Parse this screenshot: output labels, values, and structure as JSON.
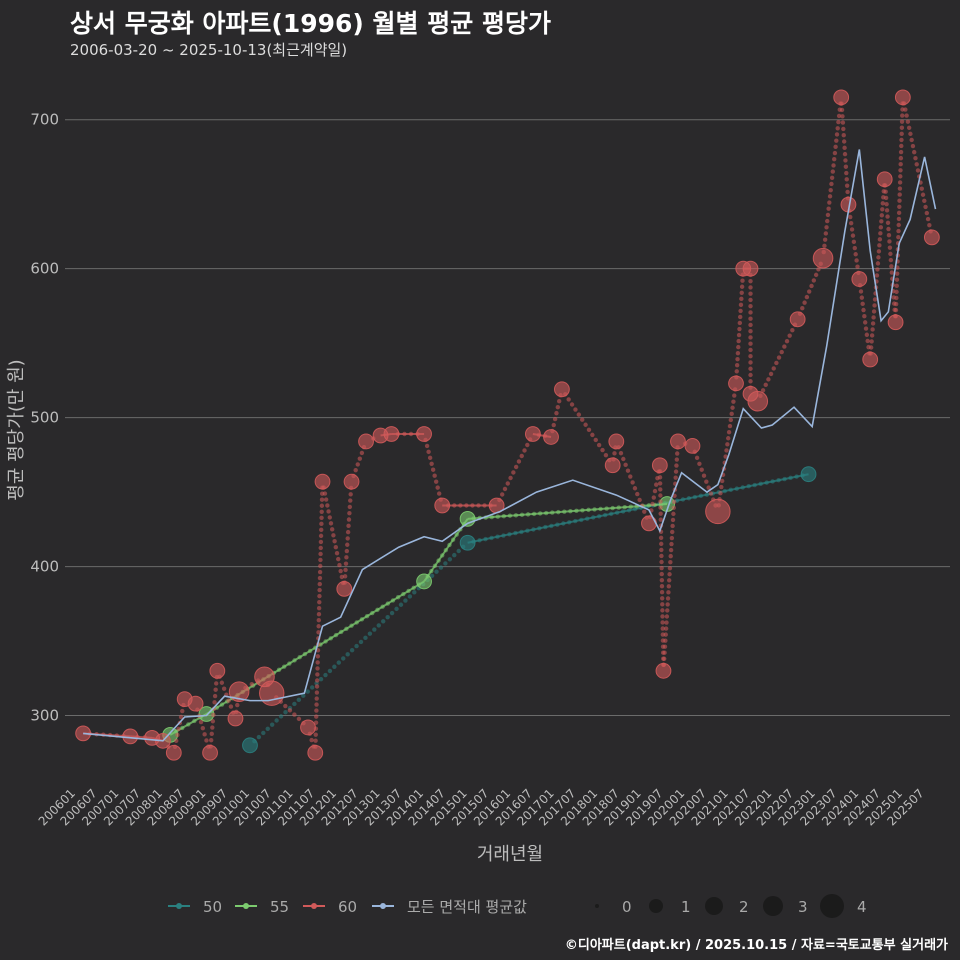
{
  "header": {
    "title": "상서 무궁화 아파트(1996) 월별 평균 평당가",
    "subtitle": "2006-03-20 ~ 2025-10-13(최근계약일)",
    "credit": "©디아파트(dapt.kr) / 2025.10.15 / 자료=국토교통부 실거래가"
  },
  "chart_data": {
    "type": "line",
    "title": "상서 무궁화 아파트(1996) 월별 평균 평당가",
    "xlabel": "거래년월",
    "ylabel": "평균 평당가(만 원)",
    "ylim": [
      250,
      730
    ],
    "yticks": [
      300,
      400,
      500,
      600,
      700
    ],
    "xlim": [
      "2005-10",
      "2026-02"
    ],
    "xtick_labels": [
      "200601",
      "200607",
      "200701",
      "200707",
      "200801",
      "200807",
      "200901",
      "200907",
      "201001",
      "201007",
      "201101",
      "201107",
      "201201",
      "201207",
      "201301",
      "201307",
      "201401",
      "201407",
      "201501",
      "201507",
      "201601",
      "201607",
      "201701",
      "201707",
      "201801",
      "201807",
      "201901",
      "201907",
      "202001",
      "202007",
      "202101",
      "202107",
      "202201",
      "202207",
      "202301",
      "202307",
      "202401",
      "202407",
      "202501",
      "202507"
    ],
    "colors": {
      "50": "#2a8080",
      "55": "#7ccb6f",
      "60": "#d15a5a",
      "avg": "#9ab6dc"
    },
    "series": [
      {
        "name": "50",
        "color": "#2a8080",
        "points": [
          {
            "x": "2010-01",
            "y": 280,
            "n": 1
          },
          {
            "x": "2015-01",
            "y": 416,
            "n": 1
          },
          {
            "x": "2022-11",
            "y": 462,
            "n": 1
          }
        ]
      },
      {
        "name": "55",
        "color": "#7ccb6f",
        "points": [
          {
            "x": "2008-03",
            "y": 287,
            "n": 1
          },
          {
            "x": "2009-01",
            "y": 301,
            "n": 1
          },
          {
            "x": "2014-01",
            "y": 390,
            "n": 1
          },
          {
            "x": "2015-01",
            "y": 432,
            "n": 1
          },
          {
            "x": "2019-08",
            "y": 442,
            "n": 1
          }
        ]
      },
      {
        "name": "60",
        "color": "#d15a5a",
        "points": [
          {
            "x": "2006-03",
            "y": 288,
            "n": 1
          },
          {
            "x": "2007-04",
            "y": 286,
            "n": 1
          },
          {
            "x": "2007-10",
            "y": 285,
            "n": 1
          },
          {
            "x": "2008-01",
            "y": 283,
            "n": 1
          },
          {
            "x": "2008-04",
            "y": 275,
            "n": 1
          },
          {
            "x": "2008-07",
            "y": 311,
            "n": 1
          },
          {
            "x": "2008-10",
            "y": 308,
            "n": 1
          },
          {
            "x": "2009-02",
            "y": 275,
            "n": 1
          },
          {
            "x": "2009-04",
            "y": 330,
            "n": 1
          },
          {
            "x": "2009-09",
            "y": 298,
            "n": 1
          },
          {
            "x": "2009-10",
            "y": 316,
            "n": 2
          },
          {
            "x": "2010-05",
            "y": 326,
            "n": 2
          },
          {
            "x": "2010-07",
            "y": 315,
            "n": 3
          },
          {
            "x": "2011-05",
            "y": 292,
            "n": 1
          },
          {
            "x": "2011-07",
            "y": 275,
            "n": 1
          },
          {
            "x": "2011-09",
            "y": 457,
            "n": 1
          },
          {
            "x": "2012-03",
            "y": 385,
            "n": 1
          },
          {
            "x": "2012-05",
            "y": 457,
            "n": 1
          },
          {
            "x": "2012-09",
            "y": 484,
            "n": 1
          },
          {
            "x": "2013-01",
            "y": 488,
            "n": 1
          },
          {
            "x": "2013-04",
            "y": 489,
            "n": 1
          },
          {
            "x": "2014-01",
            "y": 489,
            "n": 1
          },
          {
            "x": "2014-06",
            "y": 441,
            "n": 1
          },
          {
            "x": "2015-09",
            "y": 441,
            "n": 1
          },
          {
            "x": "2016-07",
            "y": 489,
            "n": 1
          },
          {
            "x": "2016-12",
            "y": 487,
            "n": 1
          },
          {
            "x": "2017-03",
            "y": 519,
            "n": 1
          },
          {
            "x": "2018-05",
            "y": 468,
            "n": 1
          },
          {
            "x": "2018-06",
            "y": 484,
            "n": 1
          },
          {
            "x": "2019-03",
            "y": 429,
            "n": 1
          },
          {
            "x": "2019-06",
            "y": 468,
            "n": 1
          },
          {
            "x": "2019-07",
            "y": 330,
            "n": 1
          },
          {
            "x": "2019-11",
            "y": 484,
            "n": 1
          },
          {
            "x": "2020-03",
            "y": 481,
            "n": 1
          },
          {
            "x": "2020-10",
            "y": 437,
            "n": 3
          },
          {
            "x": "2021-03",
            "y": 523,
            "n": 1
          },
          {
            "x": "2021-05",
            "y": 600,
            "n": 1
          },
          {
            "x": "2021-07",
            "y": 600,
            "n": 1
          },
          {
            "x": "2021-07",
            "y": 516,
            "n": 1
          },
          {
            "x": "2021-09",
            "y": 511,
            "n": 2
          },
          {
            "x": "2022-08",
            "y": 566,
            "n": 1
          },
          {
            "x": "2023-03",
            "y": 607,
            "n": 2
          },
          {
            "x": "2023-08",
            "y": 715,
            "n": 1
          },
          {
            "x": "2023-10",
            "y": 643,
            "n": 1
          },
          {
            "x": "2024-01",
            "y": 593,
            "n": 1
          },
          {
            "x": "2024-04",
            "y": 539,
            "n": 1
          },
          {
            "x": "2024-08",
            "y": 660,
            "n": 1
          },
          {
            "x": "2024-11",
            "y": 564,
            "n": 1
          },
          {
            "x": "2025-01",
            "y": 715,
            "n": 1
          },
          {
            "x": "2025-09",
            "y": 621,
            "n": 1
          }
        ]
      },
      {
        "name": "모든 면적대 평균값",
        "color": "#9ab6dc",
        "points": [
          {
            "x": "2006-03",
            "y": 288
          },
          {
            "x": "2008-01",
            "y": 283
          },
          {
            "x": "2008-07",
            "y": 299
          },
          {
            "x": "2009-01",
            "y": 300
          },
          {
            "x": "2009-06",
            "y": 313
          },
          {
            "x": "2010-01",
            "y": 310
          },
          {
            "x": "2010-06",
            "y": 310
          },
          {
            "x": "2011-04",
            "y": 315
          },
          {
            "x": "2011-09",
            "y": 360
          },
          {
            "x": "2012-02",
            "y": 366
          },
          {
            "x": "2012-08",
            "y": 398
          },
          {
            "x": "2013-06",
            "y": 413
          },
          {
            "x": "2014-01",
            "y": 420
          },
          {
            "x": "2014-06",
            "y": 417
          },
          {
            "x": "2015-01",
            "y": 429
          },
          {
            "x": "2015-10",
            "y": 437
          },
          {
            "x": "2016-08",
            "y": 450
          },
          {
            "x": "2017-06",
            "y": 458
          },
          {
            "x": "2018-06",
            "y": 448
          },
          {
            "x": "2019-03",
            "y": 438
          },
          {
            "x": "2019-06",
            "y": 424
          },
          {
            "x": "2019-09",
            "y": 445
          },
          {
            "x": "2019-12",
            "y": 463
          },
          {
            "x": "2020-07",
            "y": 450
          },
          {
            "x": "2020-10",
            "y": 455
          },
          {
            "x": "2021-01",
            "y": 475
          },
          {
            "x": "2021-05",
            "y": 506
          },
          {
            "x": "2021-10",
            "y": 493
          },
          {
            "x": "2022-01",
            "y": 495
          },
          {
            "x": "2022-07",
            "y": 507
          },
          {
            "x": "2022-12",
            "y": 494
          },
          {
            "x": "2023-04",
            "y": 548
          },
          {
            "x": "2023-09",
            "y": 625
          },
          {
            "x": "2024-01",
            "y": 680
          },
          {
            "x": "2024-04",
            "y": 612
          },
          {
            "x": "2024-07",
            "y": 565
          },
          {
            "x": "2024-09",
            "y": 571
          },
          {
            "x": "2024-12",
            "y": 617
          },
          {
            "x": "2025-03",
            "y": 633
          },
          {
            "x": "2025-07",
            "y": 675
          },
          {
            "x": "2025-10",
            "y": 640
          }
        ]
      }
    ],
    "legend": {
      "series_labels": [
        "50",
        "55",
        "60",
        "모든 면적대 평균값"
      ],
      "size_labels": [
        "0",
        "1",
        "2",
        "3",
        "4"
      ]
    }
  }
}
